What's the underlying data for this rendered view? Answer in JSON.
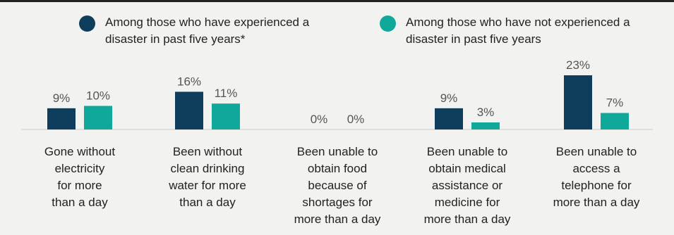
{
  "chart_data": {
    "type": "bar",
    "categories": [
      "Gone without\nelectricity\nfor more\nthan a day",
      "Been without\nclean drinking\nwater for more\nthan a day",
      "Been unable to\nobtain food\nbecause of\nshortages for\nmore than a day",
      "Been unable to\nobtain medical\nassistance or\nmedicine for\nmore than a day",
      "Been unable to\naccess a\ntelephone for\nmore than a day"
    ],
    "series": [
      {
        "name": "Among those who have experienced a\ndisaster in past five years*",
        "color": "#0f3d5c",
        "values": [
          9,
          16,
          0,
          9,
          23
        ],
        "labels": [
          "9%",
          "16%",
          "0%",
          "9%",
          "23%"
        ]
      },
      {
        "name": "Among those who have not experienced a\ndisaster in past five years",
        "color": "#10a89a",
        "values": [
          10,
          11,
          0,
          3,
          7
        ],
        "labels": [
          "10%",
          "11%",
          "0%",
          "3%",
          "7%"
        ]
      }
    ],
    "ylim": [
      0,
      23
    ],
    "legend_position": "top",
    "grid": false,
    "title": "",
    "xlabel": "",
    "ylabel": ""
  }
}
